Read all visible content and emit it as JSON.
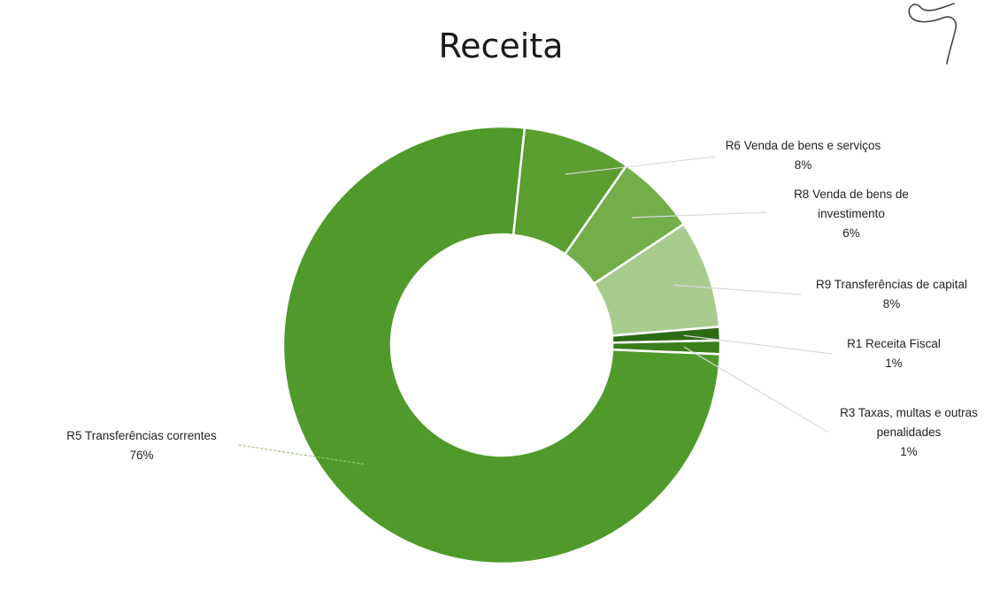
{
  "chart_data": {
    "type": "pie",
    "style": "donut",
    "title": "Receita",
    "legend": "none",
    "slices": [
      {
        "id": "r5",
        "name": "R5 Transferências correntes",
        "value": 76,
        "label": "76%",
        "color": "#4f9a2a"
      },
      {
        "id": "r6",
        "name": "R6 Venda de bens e serviços",
        "value": 8,
        "label": "8%",
        "color": "#5a9f2f"
      },
      {
        "id": "r8",
        "name": "R8 Venda de bens de investimento",
        "name_lines": [
          "R8 Venda de bens de",
          "investimento"
        ],
        "value": 6,
        "label": "6%",
        "color": "#74ae4b"
      },
      {
        "id": "r9",
        "name": "R9 Transferências de capital",
        "value": 8,
        "label": "8%",
        "color": "#a8cc8e"
      },
      {
        "id": "r1",
        "name": "R1 Receita Fiscal",
        "value": 1,
        "label": "1%",
        "color": "#2d6a14"
      },
      {
        "id": "r3",
        "name": "R3 Taxas, multas e outras penalidades",
        "name_lines": [
          "R3 Taxas, multas e outras",
          "penalidades"
        ],
        "value": 1,
        "label": "1%",
        "color": "#3a7f1c"
      }
    ]
  }
}
